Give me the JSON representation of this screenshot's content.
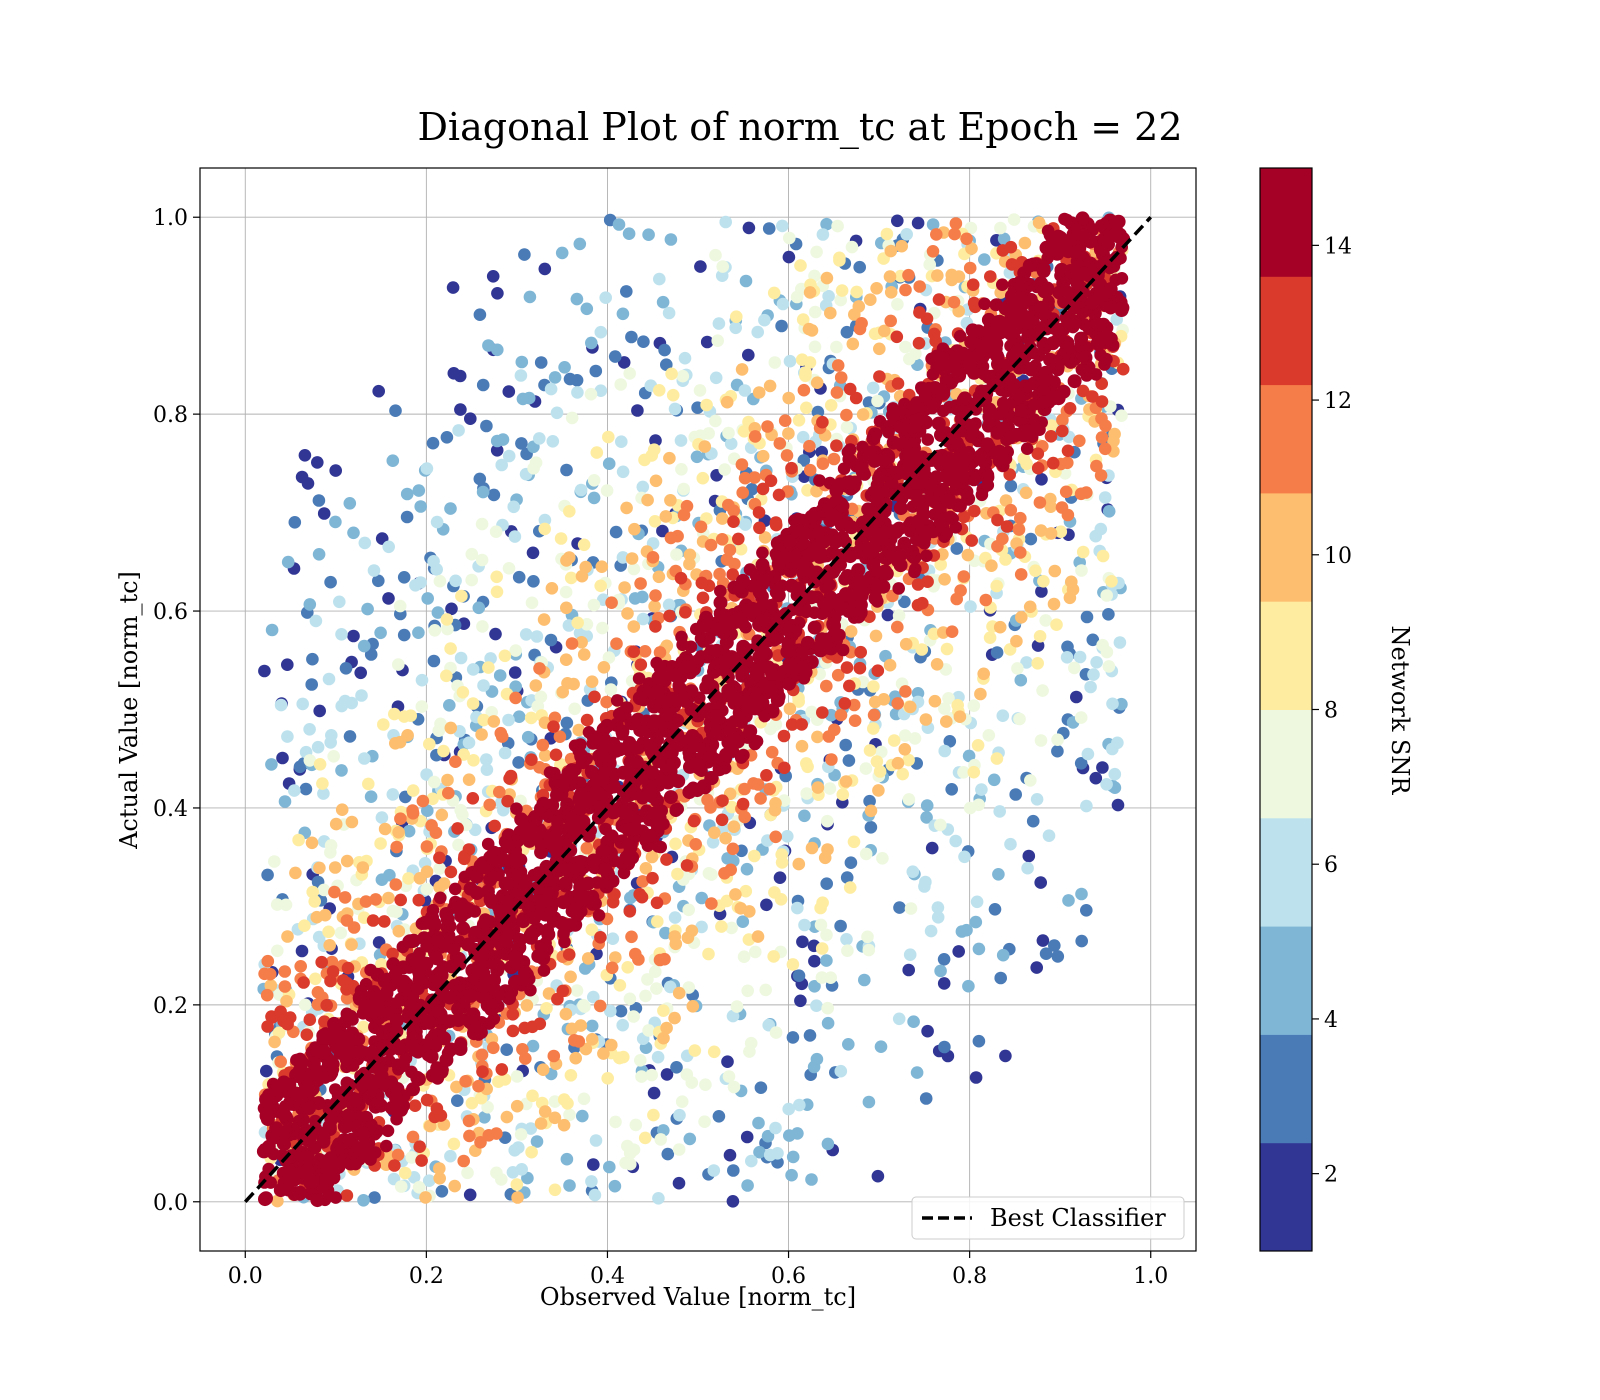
{
  "chart_data": {
    "type": "scatter",
    "title": "Diagonal Plot of norm_tc at Epoch = 22",
    "xlabel": "Observed Value [norm_tc]",
    "ylabel": "Actual Value [norm_tc]",
    "xlim": [
      -0.05,
      1.05
    ],
    "ylim": [
      -0.05,
      1.05
    ],
    "x_ticks": [
      "0.0",
      "0.2",
      "0.4",
      "0.6",
      "0.8",
      "1.0"
    ],
    "y_ticks": [
      "0.0",
      "0.2",
      "0.4",
      "0.6",
      "0.8",
      "1.0"
    ],
    "grid": true,
    "color_variable": "Network SNR",
    "colorbar": {
      "label": "Network SNR",
      "range": [
        1,
        15
      ],
      "ticks": [
        "2",
        "4",
        "6",
        "8",
        "10",
        "12",
        "14"
      ],
      "levels": [
        {
          "from": 1,
          "to": 2.4,
          "color": "#313695"
        },
        {
          "from": 2.4,
          "to": 3.8,
          "color": "#4a7bb7"
        },
        {
          "from": 3.8,
          "to": 5.2,
          "color": "#7fb6d6"
        },
        {
          "from": 5.2,
          "to": 6.6,
          "color": "#bde2ee"
        },
        {
          "from": 6.6,
          "to": 8.0,
          "color": "#eef8df"
        },
        {
          "from": 8.0,
          "to": 9.4,
          "color": "#feeda1"
        },
        {
          "from": 9.4,
          "to": 10.8,
          "color": "#fdbe6f"
        },
        {
          "from": 10.8,
          "to": 12.2,
          "color": "#f57d4a"
        },
        {
          "from": 12.2,
          "to": 13.6,
          "color": "#d93a2b"
        },
        {
          "from": 13.6,
          "to": 15,
          "color": "#a50026"
        }
      ]
    },
    "reference_line": {
      "name": "Best Classifier",
      "style": "dashed",
      "color": "#000000",
      "points": [
        [
          0,
          0
        ],
        [
          1,
          1
        ]
      ]
    },
    "legend": {
      "position": "lower-right",
      "entries": [
        "Best Classifier"
      ]
    },
    "scatter_bands": [
      {
        "snr": 14.5,
        "max_offset": 0.1,
        "count": 900
      },
      {
        "snr": 13.0,
        "max_offset": 0.16,
        "count": 450
      },
      {
        "snr": 11.5,
        "max_offset": 0.22,
        "count": 420
      },
      {
        "snr": 10.0,
        "max_offset": 0.3,
        "count": 420
      },
      {
        "snr": 8.5,
        "max_offset": 0.38,
        "count": 400
      },
      {
        "snr": 7.0,
        "max_offset": 0.45,
        "count": 380
      },
      {
        "snr": 5.5,
        "max_offset": 0.55,
        "count": 380
      },
      {
        "snr": 4.0,
        "max_offset": 0.62,
        "count": 330
      },
      {
        "snr": 2.5,
        "max_offset": 0.66,
        "count": 260
      },
      {
        "snr": 1.5,
        "max_offset": 0.7,
        "count": 200
      }
    ],
    "x_extent": [
      0.02,
      0.97
    ]
  }
}
